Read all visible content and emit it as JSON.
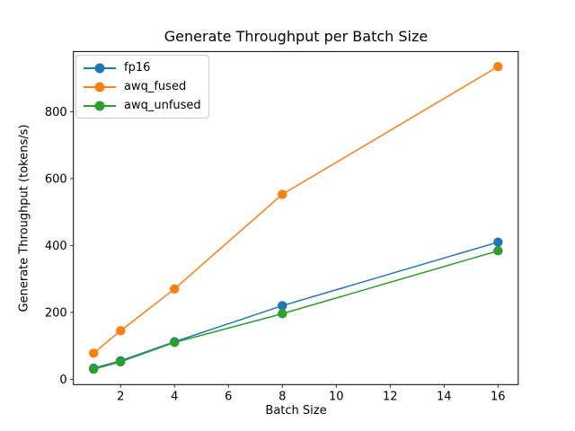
{
  "chart_data": {
    "type": "line",
    "title": "Generate Throughput per Batch Size",
    "xlabel": "Batch Size",
    "ylabel": "Generate Throughput (tokens/s)",
    "x": [
      1,
      2,
      4,
      8,
      16
    ],
    "series": [
      {
        "name": "fp16",
        "color": "#1f77b4",
        "values": [
          33,
          55,
          112,
          220,
          410
        ]
      },
      {
        "name": "awq_fused",
        "color": "#ff7f0e",
        "values": [
          78,
          145,
          270,
          553,
          935
        ]
      },
      {
        "name": "awq_unfused",
        "color": "#2ca02c",
        "values": [
          30,
          52,
          110,
          196,
          384
        ]
      }
    ],
    "xlim": [
      0.25,
      16.75
    ],
    "ylim": [
      -16,
      980
    ],
    "xticks": [
      2,
      4,
      6,
      8,
      10,
      12,
      14,
      16
    ],
    "yticks": [
      0,
      200,
      400,
      600,
      800
    ],
    "grid": false,
    "legend_position": "upper-left",
    "marker": "circle",
    "line_width": 1.5,
    "axis_color": "#000000",
    "legend_border_color": "#cccccc",
    "background_color": "#ffffff"
  }
}
